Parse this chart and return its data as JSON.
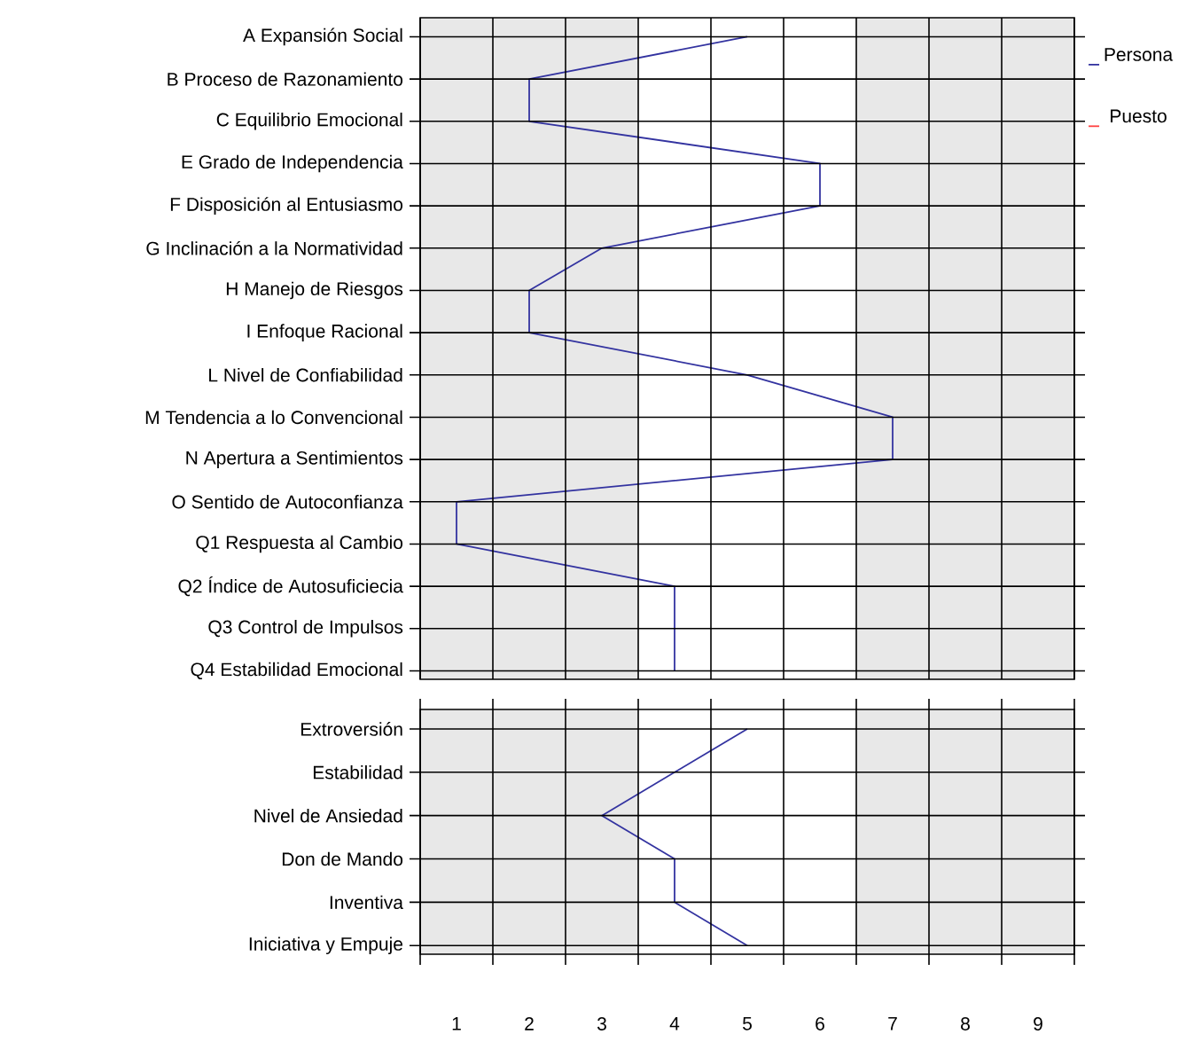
{
  "chart_data": [
    {
      "type": "line",
      "orientation": "horizontal",
      "categories": [
        "A Expansión Social",
        "B Proceso de Razonamiento",
        "C Equilibrio Emocional",
        "E Grado de Independencia",
        "F Disposición al Entusiasmo",
        "G Inclinación a la Normatividad",
        "H Manejo de Riesgos",
        "I Enfoque Racional",
        "L Nivel de Confiabilidad",
        "M Tendencia a lo Convencional",
        "N Apertura a Sentimientos",
        "O Sentido de Autoconfianza",
        "Q1 Respuesta al Cambio",
        "Q2 Índice de Autosuficiecia",
        "Q3 Control de Impulsos",
        "Q4 Estabilidad Emocional"
      ],
      "series": [
        {
          "name": "Persona",
          "color": "#3333a0",
          "values": [
            5,
            2,
            2,
            6,
            6,
            3,
            2,
            2,
            5,
            7,
            7,
            1,
            1,
            4,
            4,
            4
          ]
        },
        {
          "name": "Puesto",
          "color": "#ff4040",
          "values": [
            null,
            null,
            null,
            null,
            null,
            null,
            null,
            null,
            null,
            null,
            null,
            null,
            null,
            null,
            null,
            null
          ]
        }
      ],
      "xlim": [
        0.5,
        9.5
      ],
      "xticks": [
        {
          "value": 0.5,
          "label": null
        },
        {
          "value": 1.5,
          "label": null
        },
        {
          "value": 2.5,
          "label": null
        },
        {
          "value": 3.5,
          "label": null
        },
        {
          "value": 4.5,
          "label": null
        },
        {
          "value": 5.5,
          "label": null
        },
        {
          "value": 6.5,
          "label": null
        },
        {
          "value": 7.5,
          "label": null
        },
        {
          "value": 8.5,
          "label": null
        },
        {
          "value": 9.5,
          "label": null
        },
        1,
        2,
        3,
        4,
        5,
        6,
        7,
        8,
        9
      ],
      "bands": [
        {
          "axis": "x",
          "from": 0.5,
          "to": 3.5,
          "color": "#e8e8e8"
        },
        {
          "axis": "x",
          "from": 6.5,
          "to": 9.5,
          "color": "#e8e8e8"
        }
      ],
      "grid": true,
      "legend": "right",
      "tick_labels": "y"
    },
    {
      "type": "line",
      "orientation": "horizontal",
      "categories": [
        "Extroversión",
        "Estabilidad",
        "Nivel de Ansiedad",
        "Don de Mando",
        "Inventiva",
        "Iniciativa y Empuje"
      ],
      "series": [
        {
          "color": "#3333a0",
          "values": [
            5,
            4,
            3,
            4,
            4,
            5
          ]
        }
      ],
      "xlim": [
        0.5,
        9.5
      ],
      "xticks": [
        {
          "value": 0.5,
          "label": null
        },
        {
          "value": 1.5,
          "label": null
        },
        {
          "value": 2.5,
          "label": null
        },
        {
          "value": 3.5,
          "label": null
        },
        {
          "value": 4.5,
          "label": null
        },
        {
          "value": 5.5,
          "label": null
        },
        {
          "value": 6.5,
          "label": null
        },
        {
          "value": 7.5,
          "label": null
        },
        {
          "value": 8.5,
          "label": null
        },
        {
          "value": 9.5,
          "label": null
        },
        1,
        2,
        3,
        4,
        5,
        6,
        7,
        8,
        9
      ],
      "bands": [
        {
          "axis": "x",
          "from": 0.5,
          "to": 3.5,
          "color": "#e8e8e8"
        },
        {
          "axis": "x",
          "from": 6.5,
          "to": 9.5,
          "color": "#e8e8e8"
        }
      ],
      "grid": true
    }
  ]
}
